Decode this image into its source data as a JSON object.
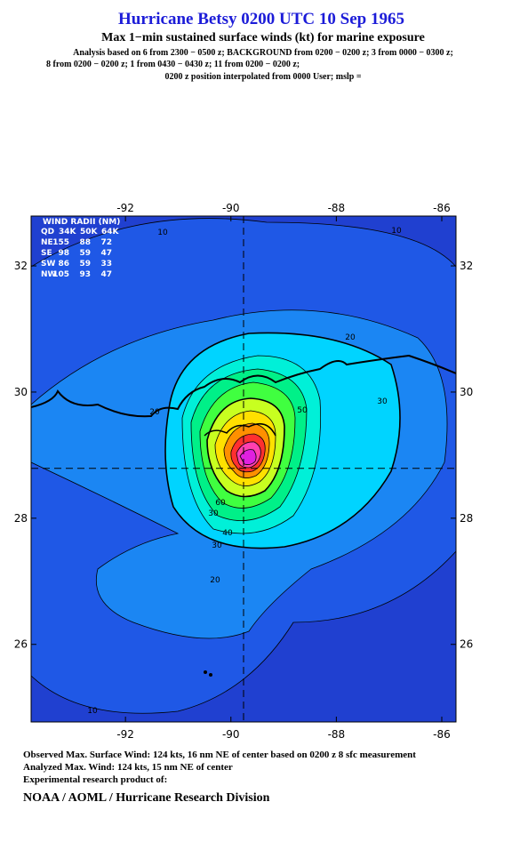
{
  "header": {
    "title": "Hurricane Betsy 0200 UTC 10 Sep 1965",
    "subtitle": "Max 1−min sustained surface winds (kt) for marine exposure",
    "analysis": [
      "Analysis based on  6 from 2300 − 0500 z;  BACKGROUND from 0200 − 0200 z;  3 from 0000 − 0300 z;",
      "8 from 0200 − 0200 z;  1 from 0430 − 0430 z;  11 from 0200 − 0200 z;",
      "0200 z position interpolated from 0000 User; mslp ="
    ]
  },
  "map": {
    "xlim": [
      -93.79,
      -85.73
    ],
    "ylim": [
      24.77,
      32.79
    ],
    "xticks": [
      -92,
      -90,
      -88,
      -86
    ],
    "yticks": [
      26,
      28,
      30,
      32
    ],
    "center": {
      "lon": -89.76,
      "lat": 28.79
    },
    "contour_labels": [
      "10",
      "10",
      "10",
      "20",
      "20",
      "20",
      "30",
      "30",
      "30",
      "40",
      "50",
      "60"
    ]
  },
  "wind_radii": {
    "title": "WIND RADII (NM)",
    "columns": [
      "QD",
      "34K",
      "50K",
      "64K"
    ],
    "rows": [
      [
        "NE",
        "155",
        "88",
        "72"
      ],
      [
        "SE",
        "98",
        "59",
        "47"
      ],
      [
        "SW",
        "86",
        "59",
        "33"
      ],
      [
        "NW",
        "105",
        "93",
        "47"
      ]
    ]
  },
  "footer": {
    "lines": [
      "Observed Max. Surface Wind: 124 kts, 16 nm NE of center based on 0200 z 8 sfc measurement",
      "Analyzed Max. Wind: 124 kts, 15 nm NE of center",
      "Experimental research product of:"
    ],
    "credit": "NOAA / AOML / Hurricane Research Division"
  }
}
